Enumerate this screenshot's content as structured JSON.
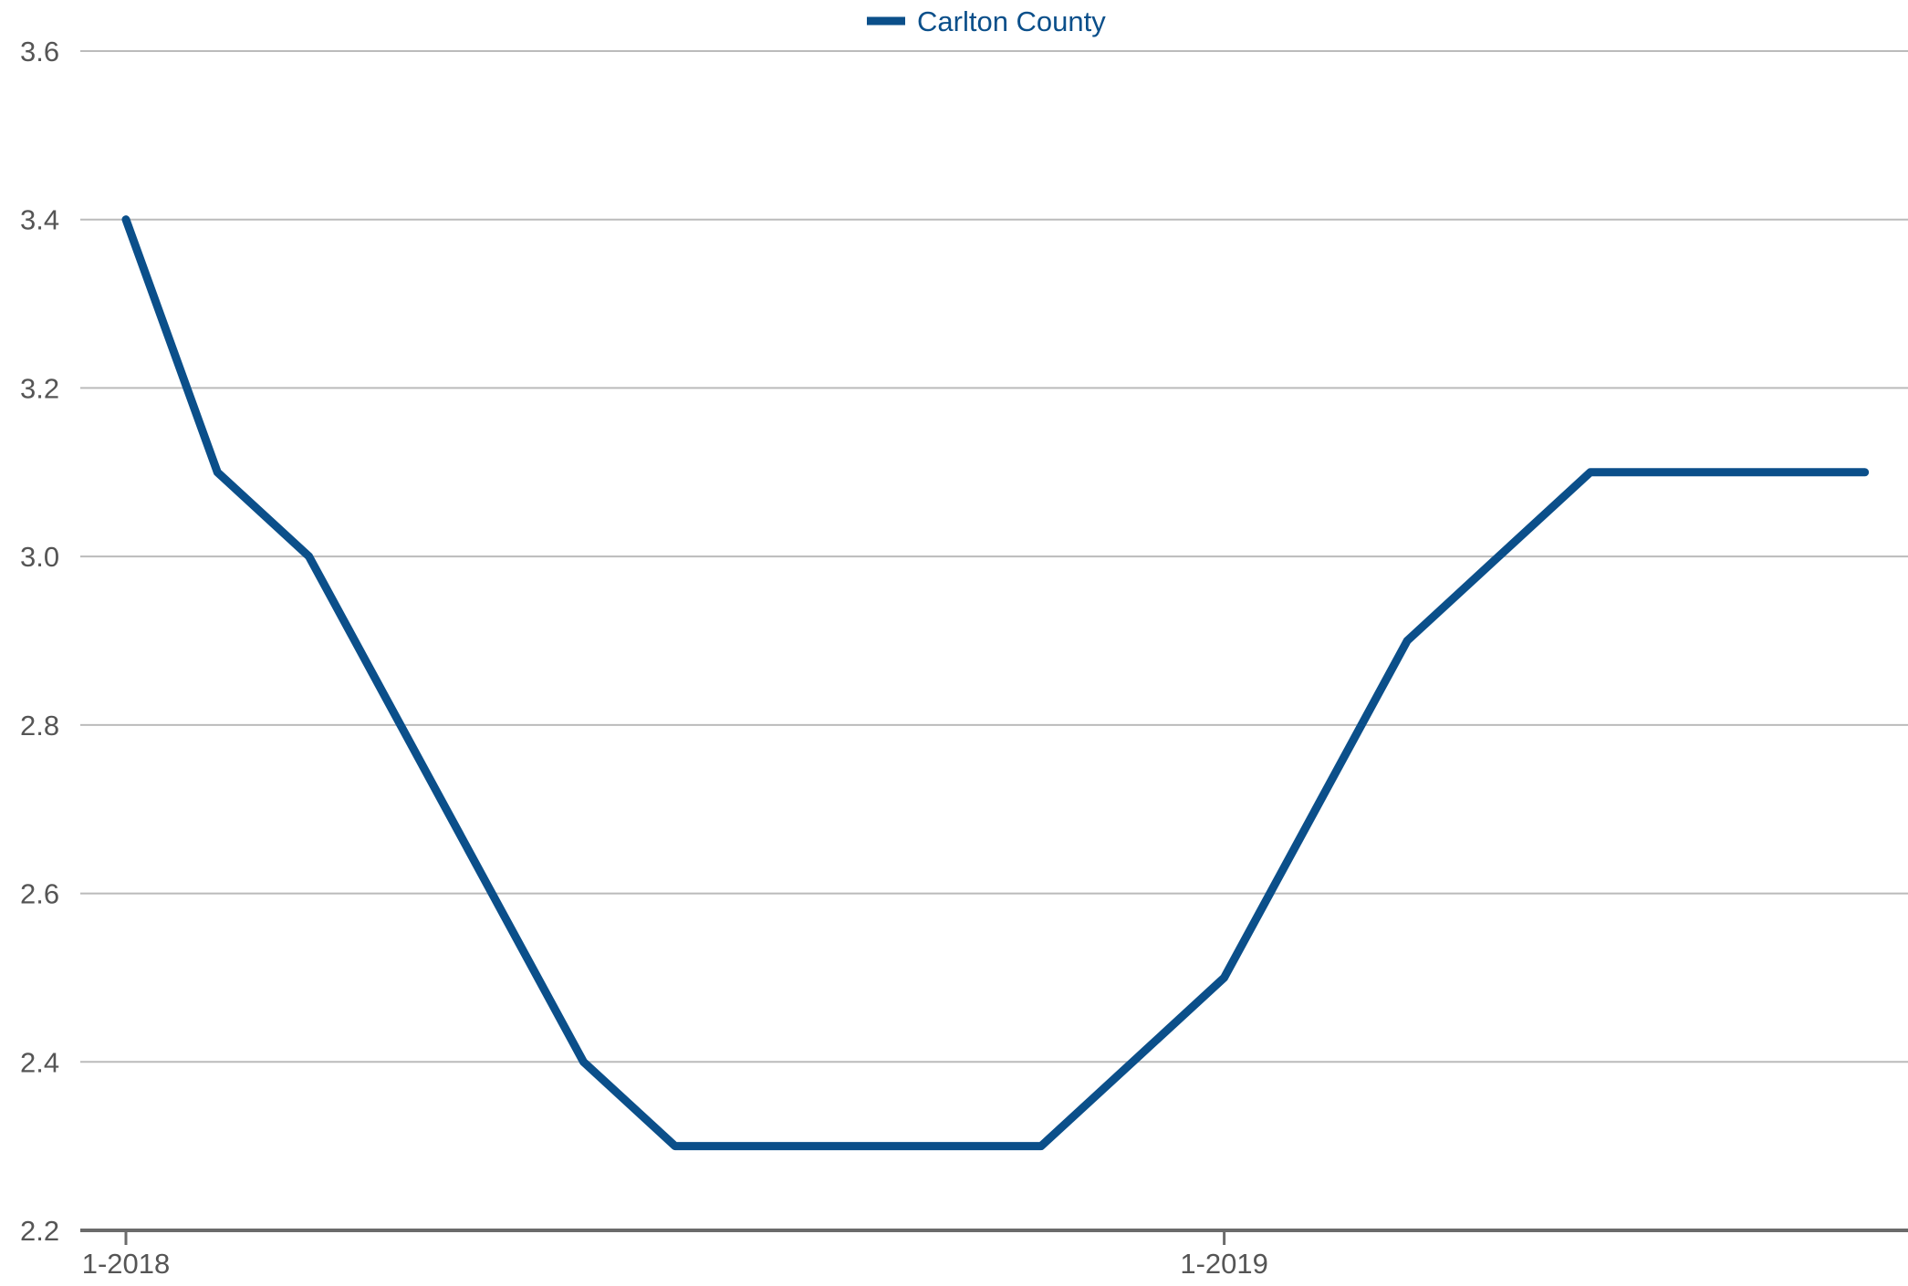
{
  "colors": {
    "series": "#0b4f8a",
    "grid": "#bbbbbb",
    "axis": "#6b6b6b",
    "tick_text": "#555555"
  },
  "chart_data": {
    "type": "line",
    "title": "",
    "xlabel": "",
    "ylabel": "",
    "legend_position": "top-center",
    "grid": true,
    "ylim": [
      2.2,
      3.6
    ],
    "y_ticks": [
      "2.2",
      "2.4",
      "2.6",
      "2.8",
      "3.0",
      "3.2",
      "3.4",
      "3.6"
    ],
    "x_ticks": [
      {
        "label": "1-2018",
        "month_index": 0
      },
      {
        "label": "1-2019",
        "month_index": 12
      }
    ],
    "x": [
      "1-2018",
      "2-2018",
      "3-2018",
      "4-2018",
      "5-2018",
      "6-2018",
      "7-2018",
      "8-2018",
      "9-2018",
      "10-2018",
      "11-2018",
      "12-2018",
      "1-2019",
      "2-2019",
      "3-2019",
      "4-2019",
      "5-2019",
      "6-2019",
      "7-2019",
      "8-2019"
    ],
    "series": [
      {
        "name": "Carlton County",
        "values": [
          3.4,
          3.1,
          3.0,
          2.8,
          2.6,
          2.4,
          2.3,
          2.3,
          2.3,
          2.3,
          2.3,
          2.4,
          2.5,
          2.7,
          2.9,
          3.0,
          3.1,
          3.1,
          3.1,
          3.1
        ]
      }
    ]
  }
}
